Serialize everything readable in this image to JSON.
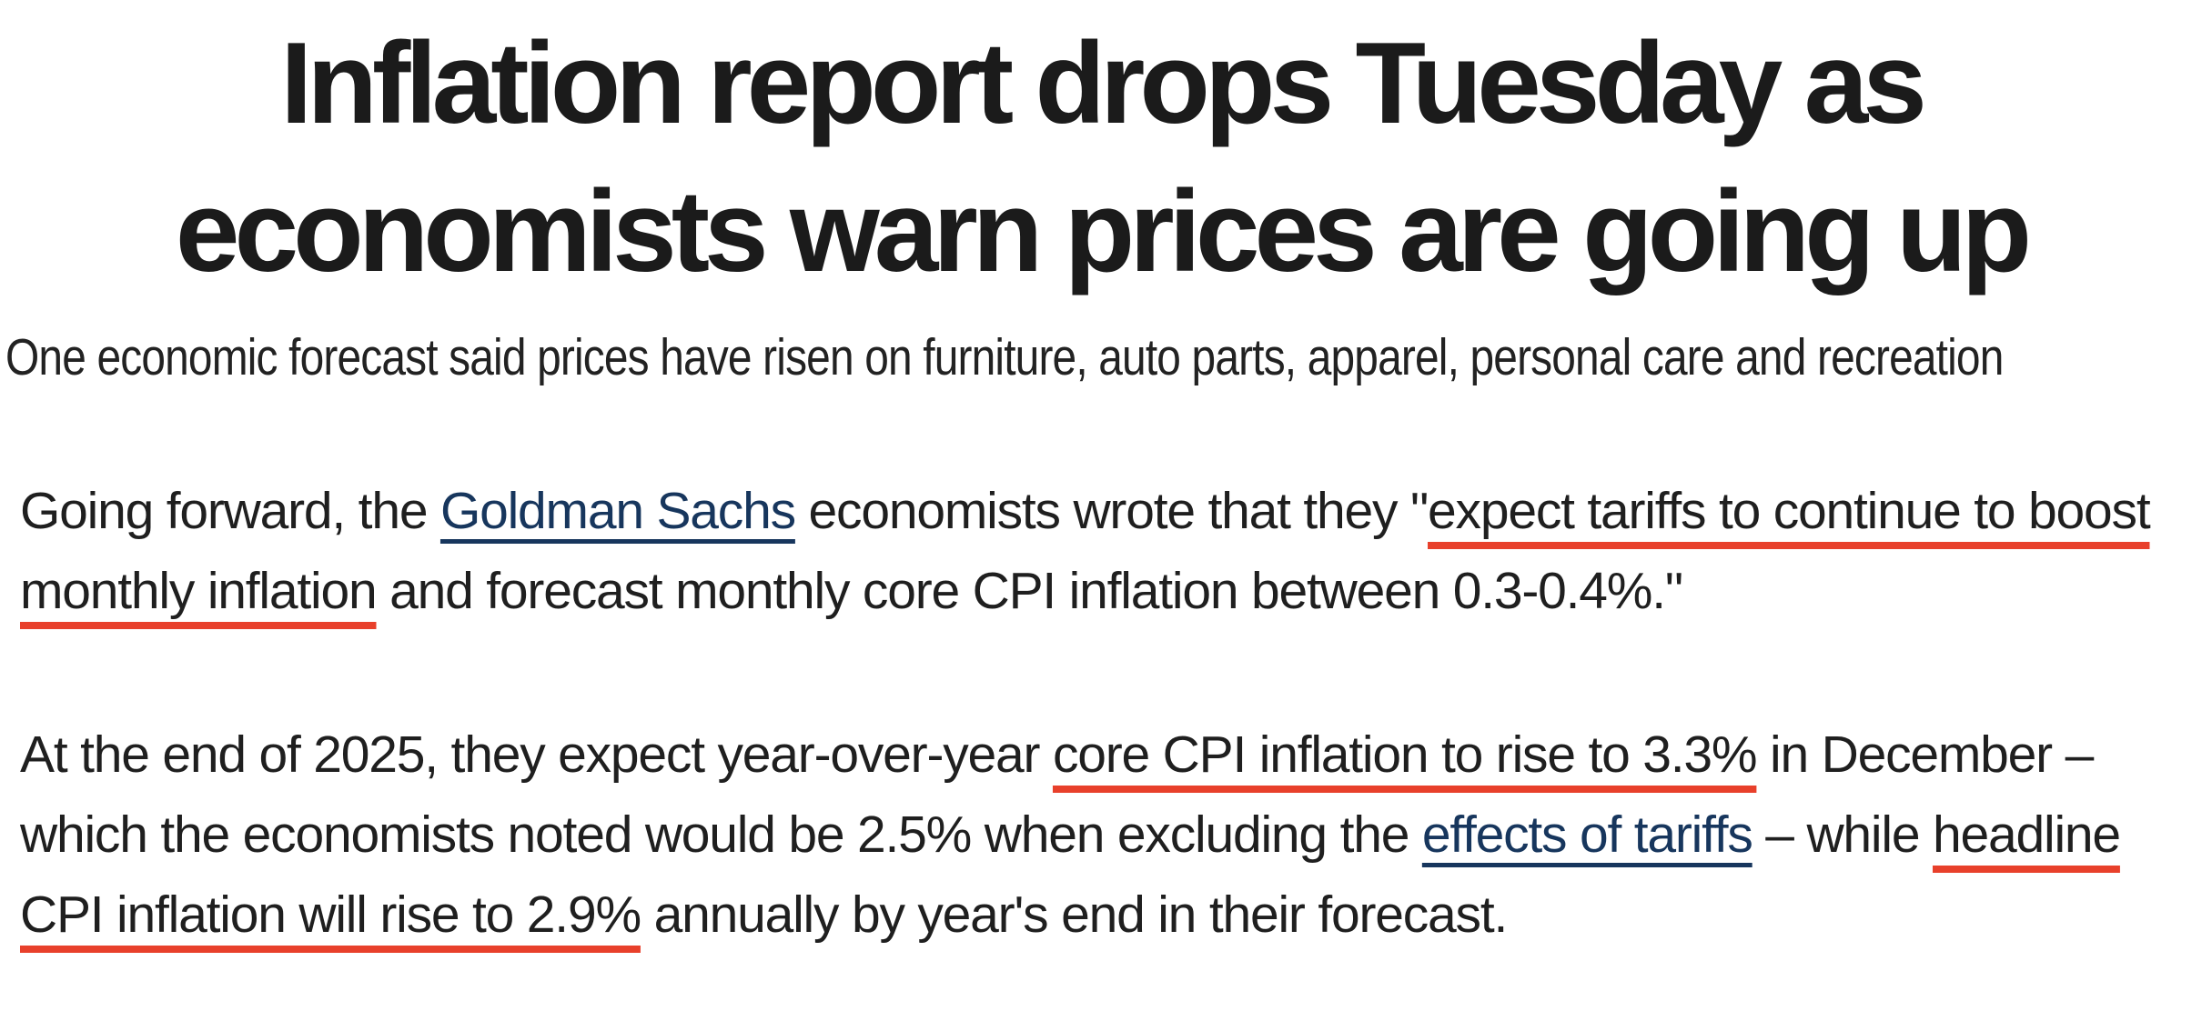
{
  "colors": {
    "text": "#1f1f1f",
    "headline_text": "#1b1b1b",
    "link_navy": "#17365d",
    "red_underline": "#e8402b",
    "background": "#ffffff"
  },
  "headline": {
    "line1": "Inflation report drops Tuesday as",
    "line2": "economists warn prices are going up"
  },
  "subheadline": "One economic forecast said prices have risen on furniture, auto parts, apparel, personal care and recreation",
  "paragraphs": [
    {
      "segments": [
        {
          "style": "plain",
          "text": "Going forward, the "
        },
        {
          "style": "link",
          "text": "Goldman Sachs"
        },
        {
          "style": "plain",
          "text": " economists wrote that they \""
        },
        {
          "style": "red-underline",
          "text": "expect tariffs to continue to boost monthly inflation"
        },
        {
          "style": "plain",
          "text": " and forecast monthly core CPI inflation between 0.3-0.4%.\""
        }
      ]
    },
    {
      "segments": [
        {
          "style": "plain",
          "text": "At the end of 2025, they expect year-over-year "
        },
        {
          "style": "red-underline",
          "text": "core CPI inflation to rise to 3.3%"
        },
        {
          "style": "plain",
          "text": " in December – which the economists noted would be 2.5% when excluding the "
        },
        {
          "style": "link",
          "text": "effects of tariffs"
        },
        {
          "style": "plain",
          "text": " – while "
        },
        {
          "style": "red-underline",
          "text": "headline CPI inflation will rise to 2.9%"
        },
        {
          "style": "plain",
          "text": " annually by year's end in their forecast."
        }
      ]
    }
  ]
}
